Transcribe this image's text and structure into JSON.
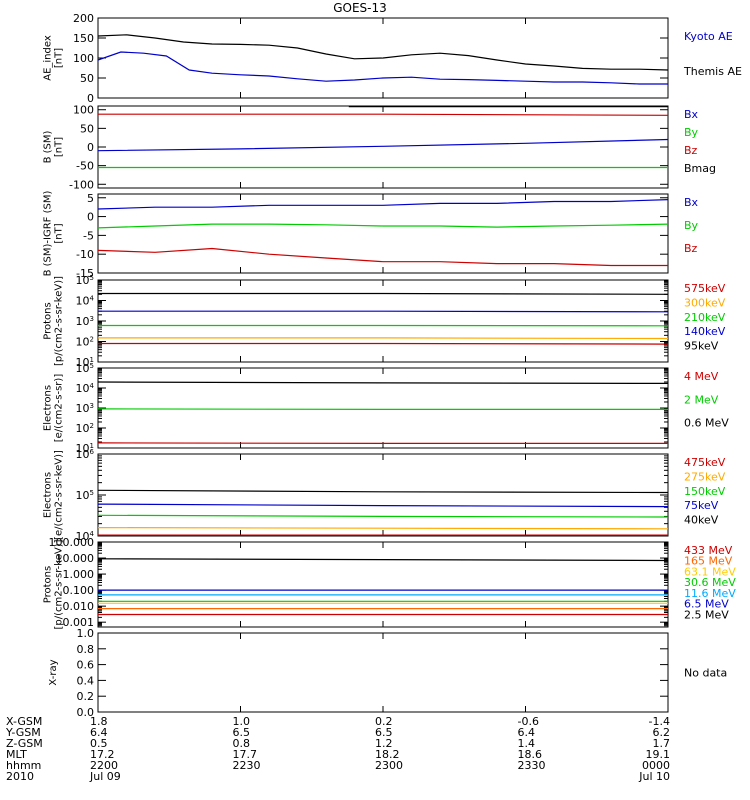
{
  "title": "GOES-13",
  "chart_data": [
    {
      "type": "line",
      "ylabel": [
        "AE_index",
        "[nT]"
      ],
      "ylim": [
        0,
        200
      ],
      "yticks": [
        0,
        50,
        100,
        150,
        200
      ],
      "legend": [
        {
          "name": "Kyoto AE",
          "color": "#0000cc"
        },
        {
          "name": "Themis AE",
          "color": "#000000"
        }
      ],
      "series": [
        {
          "name": "Themis AE",
          "color": "#000000",
          "x": [
            0,
            0.05,
            0.1,
            0.15,
            0.2,
            0.25,
            0.3,
            0.35,
            0.4,
            0.45,
            0.5,
            0.55,
            0.6,
            0.65,
            0.7,
            0.75,
            0.8,
            0.85,
            0.9,
            0.95,
            1.0
          ],
          "values": [
            155,
            158,
            150,
            140,
            135,
            134,
            132,
            125,
            110,
            98,
            100,
            108,
            112,
            106,
            95,
            85,
            80,
            74,
            72,
            72,
            70
          ]
        },
        {
          "name": "Kyoto AE",
          "color": "#0000cc",
          "x": [
            0,
            0.04,
            0.08,
            0.12,
            0.16,
            0.2,
            0.25,
            0.3,
            0.35,
            0.4,
            0.45,
            0.5,
            0.55,
            0.6,
            0.65,
            0.7,
            0.75,
            0.8,
            0.85,
            0.9,
            0.95,
            1.0
          ],
          "values": [
            95,
            115,
            112,
            105,
            70,
            62,
            58,
            55,
            48,
            42,
            45,
            50,
            52,
            47,
            46,
            44,
            42,
            40,
            40,
            38,
            35,
            35
          ]
        }
      ]
    },
    {
      "type": "line",
      "ylabel": [
        "B (SM)",
        "[nT]"
      ],
      "ylim": [
        -110,
        110
      ],
      "yticks": [
        -100,
        -50,
        0,
        50,
        100
      ],
      "legend": [
        {
          "name": "Bx",
          "color": "#0000cc"
        },
        {
          "name": "By",
          "color": "#00cc00"
        },
        {
          "name": "Bz",
          "color": "#cc0000"
        },
        {
          "name": "Bmag",
          "color": "#000000"
        }
      ],
      "series": [
        {
          "name": "Bx",
          "color": "#0000cc",
          "x": [
            0,
            0.25,
            0.5,
            0.75,
            1.0
          ],
          "values": [
            -10,
            -5,
            2,
            10,
            20
          ]
        },
        {
          "name": "By",
          "color": "#00cc00",
          "x": [
            0,
            0.5,
            1.0
          ],
          "values": [
            -55,
            -55,
            -55
          ]
        },
        {
          "name": "Bz",
          "color": "#cc0000",
          "x": [
            0,
            0.5,
            1.0
          ],
          "values": [
            88,
            88,
            85
          ]
        },
        {
          "name": "Bmag",
          "color": "#000000",
          "x": [
            0.44,
            1.0
          ],
          "values": [
            108,
            108
          ]
        }
      ]
    },
    {
      "type": "line",
      "ylabel": [
        "B (SM)-IGRF (SM)",
        "[nT]"
      ],
      "ylim": [
        -15,
        6
      ],
      "yticks": [
        -15,
        -10,
        -5,
        0,
        5
      ],
      "legend": [
        {
          "name": "Bx",
          "color": "#0000cc"
        },
        {
          "name": "By",
          "color": "#00cc00"
        },
        {
          "name": "Bz",
          "color": "#cc0000"
        }
      ],
      "series": [
        {
          "name": "Bx",
          "color": "#0000cc",
          "x": [
            0,
            0.1,
            0.2,
            0.3,
            0.4,
            0.5,
            0.6,
            0.7,
            0.8,
            0.9,
            1.0
          ],
          "values": [
            2,
            2.5,
            2.5,
            3,
            3,
            3,
            3.5,
            3.5,
            4,
            4,
            4.5
          ]
        },
        {
          "name": "By",
          "color": "#00cc00",
          "x": [
            0,
            0.1,
            0.2,
            0.3,
            0.4,
            0.5,
            0.6,
            0.7,
            0.8,
            0.9,
            1.0
          ],
          "values": [
            -3,
            -2.5,
            -2,
            -2,
            -2.2,
            -2.5,
            -2.5,
            -2.8,
            -2.5,
            -2.3,
            -2
          ]
        },
        {
          "name": "Bz",
          "color": "#cc0000",
          "x": [
            0,
            0.1,
            0.2,
            0.3,
            0.4,
            0.5,
            0.6,
            0.7,
            0.8,
            0.9,
            1.0
          ],
          "values": [
            -9,
            -9.5,
            -8.5,
            -10,
            -11,
            -12,
            -12,
            -12.5,
            -12.5,
            -13,
            -13
          ]
        }
      ]
    },
    {
      "type": "line",
      "ylabel": [
        "Protons",
        "[p/(cm2-s-sr-keV)]"
      ],
      "yscale": "log",
      "ylim": [
        10,
        100000
      ],
      "ytick_labels": [
        "10^1",
        "10^2",
        "10^3",
        "10^4",
        "10^5"
      ],
      "legend": [
        {
          "name": "575keV",
          "color": "#cc0000"
        },
        {
          "name": "300keV",
          "color": "#ffaa00"
        },
        {
          "name": "210keV",
          "color": "#00cc00"
        },
        {
          "name": "140keV",
          "color": "#0000cc"
        },
        {
          "name": "95keV",
          "color": "#000000"
        }
      ],
      "series": [
        {
          "name": "95keV",
          "color": "#000000",
          "x": [
            0,
            0.5,
            1.0
          ],
          "values": [
            22000,
            22000,
            20000
          ]
        },
        {
          "name": "140keV",
          "color": "#0000cc",
          "x": [
            0,
            0.5,
            1.0
          ],
          "values": [
            3000,
            3000,
            2800
          ]
        },
        {
          "name": "210keV",
          "color": "#00cc00",
          "x": [
            0,
            0.5,
            1.0
          ],
          "values": [
            600,
            600,
            580
          ]
        },
        {
          "name": "300keV",
          "color": "#ffaa00",
          "x": [
            0,
            0.5,
            1.0
          ],
          "values": [
            150,
            150,
            140
          ]
        },
        {
          "name": "575keV",
          "color": "#cc0000",
          "x": [
            0,
            0.5,
            1.0
          ],
          "values": [
            80,
            80,
            75
          ]
        }
      ]
    },
    {
      "type": "line",
      "ylabel": [
        "Electrons",
        "[e/(cm2-s-sr)]"
      ],
      "yscale": "log",
      "ylim": [
        10,
        100000
      ],
      "ytick_labels": [
        "10^1",
        "10^2",
        "10^3",
        "10^4",
        "10^5"
      ],
      "legend": [
        {
          "name": "4 MeV",
          "color": "#cc0000"
        },
        {
          "name": "2 MeV",
          "color": "#00cc00"
        },
        {
          "name": "0.6 MeV",
          "color": "#000000"
        }
      ],
      "series": [
        {
          "name": "0.6 MeV",
          "color": "#000000",
          "x": [
            0,
            0.5,
            1.0
          ],
          "values": [
            20000,
            18000,
            17000
          ]
        },
        {
          "name": "2 MeV",
          "color": "#00cc00",
          "x": [
            0,
            0.5,
            1.0
          ],
          "values": [
            900,
            850,
            850
          ]
        },
        {
          "name": "4 MeV",
          "color": "#cc0000",
          "x": [
            0,
            0.5,
            1.0
          ],
          "values": [
            18,
            17,
            17
          ]
        }
      ]
    },
    {
      "type": "line",
      "ylabel": [
        "Electrons",
        "[e/(cm2-s-sr-keV)]"
      ],
      "yscale": "log",
      "ylim": [
        10000,
        1000000
      ],
      "ytick_labels": [
        "10^4",
        "10^5",
        "10^6"
      ],
      "legend": [
        {
          "name": "475keV",
          "color": "#cc0000"
        },
        {
          "name": "275keV",
          "color": "#ffaa00"
        },
        {
          "name": "150keV",
          "color": "#00cc00"
        },
        {
          "name": "75keV",
          "color": "#0000cc"
        },
        {
          "name": "40keV",
          "color": "#000000"
        }
      ],
      "series": [
        {
          "name": "40keV",
          "color": "#000000",
          "x": [
            0,
            0.5,
            1.0
          ],
          "values": [
            130000,
            120000,
            115000
          ]
        },
        {
          "name": "75keV",
          "color": "#0000cc",
          "x": [
            0,
            0.5,
            1.0
          ],
          "values": [
            60000,
            55000,
            52000
          ]
        },
        {
          "name": "150keV",
          "color": "#00cc00",
          "x": [
            0,
            0.5,
            1.0
          ],
          "values": [
            32000,
            30000,
            29000
          ]
        },
        {
          "name": "275keV",
          "color": "#ffaa00",
          "x": [
            0,
            0.5,
            1.0
          ],
          "values": [
            16000,
            15500,
            15000
          ]
        },
        {
          "name": "475keV",
          "color": "#cc0000",
          "x": [
            0,
            0.5,
            1.0
          ],
          "values": [
            10500,
            10500,
            10500
          ]
        }
      ]
    },
    {
      "type": "line",
      "ylabel": [
        "Protons",
        "[p/(cm2-s-sr-keV)]"
      ],
      "yscale": "log",
      "ylim": [
        0.0005,
        100
      ],
      "ytick_labels": [
        "0.001",
        "0.010",
        "0.100",
        "1.000",
        "10.000",
        "100.000"
      ],
      "legend": [
        {
          "name": "433 MeV",
          "color": "#cc0000"
        },
        {
          "name": "165 MeV",
          "color": "#ff6600"
        },
        {
          "name": "63.1 MeV",
          "color": "#ffcc00"
        },
        {
          "name": "30.6 MeV",
          "color": "#00cc00"
        },
        {
          "name": "11.6 MeV",
          "color": "#00aaff"
        },
        {
          "name": "6.5 MeV",
          "color": "#0000cc"
        },
        {
          "name": "2.5 MeV",
          "color": "#000000"
        }
      ],
      "series": [
        {
          "name": "2.5 MeV",
          "color": "#000000",
          "x": [
            0,
            0.5,
            1.0
          ],
          "values": [
            9,
            8,
            7
          ]
        },
        {
          "name": "6.5 MeV",
          "color": "#0000cc",
          "x": [
            0,
            0.5,
            1.0
          ],
          "values": [
            0.1,
            0.1,
            0.1
          ]
        },
        {
          "name": "11.6 MeV",
          "color": "#00aaff",
          "x": [
            0,
            0.5,
            1.0
          ],
          "values": [
            0.05,
            0.05,
            0.05
          ]
        },
        {
          "name": "30.6 MeV",
          "color": "#00cc00",
          "x": [
            0,
            0.5,
            1.0
          ],
          "values": [
            0.02,
            0.02,
            0.02
          ]
        },
        {
          "name": "63.1 MeV",
          "color": "#ffcc00",
          "x": [
            0,
            0.5,
            1.0
          ],
          "values": [
            0.015,
            0.015,
            0.015
          ]
        },
        {
          "name": "165 MeV",
          "color": "#ff6600",
          "x": [
            0,
            0.5,
            1.0
          ],
          "values": [
            0.007,
            0.007,
            0.007
          ]
        },
        {
          "name": "433 MeV",
          "color": "#cc0000",
          "x": [
            0,
            0.5,
            1.0
          ],
          "values": [
            0.003,
            0.003,
            0.003
          ]
        }
      ]
    },
    {
      "type": "line",
      "ylabel": [
        "X-ray"
      ],
      "ylim": [
        0,
        1.0
      ],
      "ytick_labels": [
        "0.0",
        "0.2",
        "0.4",
        "0.6",
        "0.8",
        "1.0"
      ],
      "legend": [],
      "nodata": "No data",
      "series": []
    }
  ],
  "time_axis": {
    "rows": [
      {
        "label": "X-GSM",
        "values": [
          "1.8",
          "1.0",
          "0.2",
          "-0.6",
          "-1.4"
        ]
      },
      {
        "label": "Y-GSM",
        "values": [
          "6.4",
          "6.5",
          "6.5",
          "6.4",
          "6.2"
        ]
      },
      {
        "label": "Z-GSM",
        "values": [
          "0.5",
          "0.8",
          "1.2",
          "1.4",
          "1.7"
        ]
      },
      {
        "label": "MLT",
        "values": [
          "17.2",
          "17.7",
          "18.2",
          "18.6",
          "19.1"
        ]
      },
      {
        "label": "hhmm",
        "values": [
          "2200",
          "2230",
          "2300",
          "2330",
          "0000"
        ]
      },
      {
        "label": "2010",
        "values": [
          "Jul 09",
          "",
          "",
          "",
          "Jul 10"
        ]
      }
    ]
  }
}
